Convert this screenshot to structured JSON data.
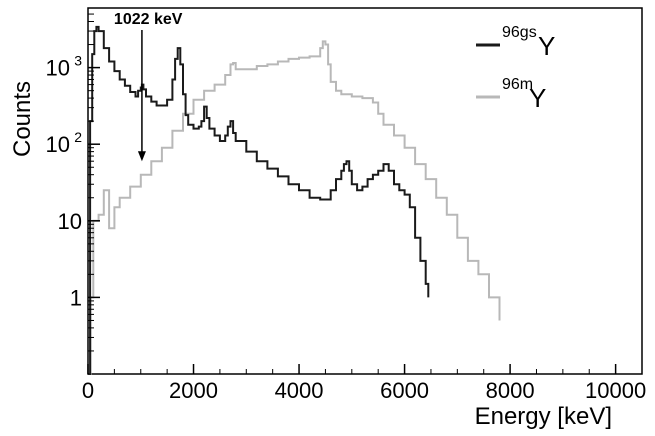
{
  "chart_data": {
    "type": "line",
    "xlabel": "Energy [keV]",
    "ylabel": "Counts",
    "xlim": [
      0,
      10500
    ],
    "ylim": [
      0.1,
      6000
    ],
    "yscale": "log",
    "grid": false,
    "legend_position": "top-right",
    "x_ticks": [
      {
        "value": 0,
        "label": "0"
      },
      {
        "value": 2000,
        "label": "2000"
      },
      {
        "value": 4000,
        "label": "4000"
      },
      {
        "value": 6000,
        "label": "6000"
      },
      {
        "value": 8000,
        "label": "8000"
      },
      {
        "value": 10000,
        "label": "10000"
      }
    ],
    "y_ticks": [
      {
        "value": 1,
        "label": "1"
      },
      {
        "value": 10,
        "label": "10"
      },
      {
        "value": 100,
        "label": "10",
        "exp": "2"
      },
      {
        "value": 1000,
        "label": "10",
        "exp": "3"
      }
    ],
    "annotation": {
      "text": "1022 keV",
      "x": 1022,
      "y": 60
    },
    "series": [
      {
        "name_base": "Y",
        "name_sup": "96gs",
        "color": "#1a1a1a",
        "x": [
          0,
          40,
          80,
          120,
          160,
          200,
          300,
          400,
          500,
          600,
          700,
          800,
          900,
          950,
          1000,
          1022,
          1050,
          1100,
          1200,
          1300,
          1400,
          1500,
          1600,
          1650,
          1700,
          1750,
          1800,
          1850,
          1900,
          2000,
          2100,
          2150,
          2200,
          2250,
          2300,
          2400,
          2500,
          2600,
          2650,
          2700,
          2750,
          2800,
          3000,
          3200,
          3400,
          3600,
          3800,
          4000,
          4200,
          4400,
          4600,
          4700,
          4800,
          4850,
          4900,
          4950,
          5000,
          5100,
          5200,
          5300,
          5400,
          5500,
          5600,
          5700,
          5800,
          5900,
          6000,
          6100,
          6200,
          6300,
          6400,
          6450
        ],
        "values": [
          0.1,
          200,
          1500,
          3000,
          3400,
          3000,
          1800,
          1200,
          900,
          700,
          580,
          480,
          420,
          500,
          550,
          600,
          520,
          420,
          360,
          320,
          320,
          380,
          700,
          1300,
          1800,
          1100,
          450,
          240,
          180,
          160,
          170,
          200,
          310,
          220,
          160,
          130,
          110,
          130,
          170,
          200,
          140,
          110,
          80,
          60,
          48,
          38,
          30,
          25,
          20,
          19,
          25,
          35,
          45,
          55,
          60,
          45,
          30,
          25,
          28,
          35,
          40,
          45,
          55,
          45,
          30,
          25,
          22,
          15,
          6,
          3,
          1.5,
          1
        ]
      },
      {
        "name_base": "Y",
        "name_sup": "96m",
        "color": "#b8b8b8",
        "x": [
          0,
          50,
          100,
          200,
          300,
          400,
          500,
          600,
          800,
          1000,
          1200,
          1400,
          1600,
          1800,
          2000,
          2200,
          2400,
          2600,
          2700,
          2750,
          2800,
          3000,
          3200,
          3400,
          3600,
          3800,
          4000,
          4200,
          4400,
          4450,
          4500,
          4550,
          4600,
          4700,
          4800,
          5000,
          5200,
          5400,
          5500,
          5600,
          5800,
          6000,
          6200,
          6400,
          6600,
          6800,
          7000,
          7200,
          7400,
          7600,
          7800
        ],
        "values": [
          0.1,
          1,
          10,
          12,
          25,
          8,
          15,
          20,
          28,
          40,
          60,
          90,
          150,
          250,
          380,
          500,
          600,
          800,
          1100,
          1150,
          950,
          950,
          1050,
          1100,
          1200,
          1300,
          1350,
          1400,
          1800,
          2200,
          2000,
          1100,
          650,
          500,
          450,
          420,
          400,
          350,
          250,
          180,
          130,
          90,
          55,
          35,
          20,
          12,
          6,
          3,
          2,
          1,
          0.5
        ]
      }
    ]
  }
}
